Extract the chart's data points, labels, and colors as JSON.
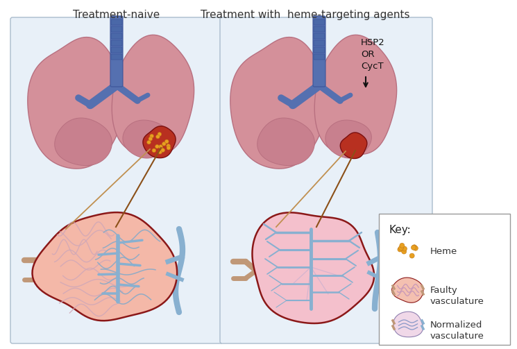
{
  "title_left": "Treatment-naive",
  "title_right": "Treatment with  heme-targeting agents",
  "annotation_text": "HSP2\nOR\nCycT",
  "key_title": "Key:",
  "key_items": [
    "Heme",
    "Faulty\nvasculature",
    "Normalized\nvasculature"
  ],
  "panel_bg": "#e8f0f8",
  "lung_color": "#d4909a",
  "lung_shade": "#c8808e",
  "lung_dark": "#b87080",
  "trachea_color": "#5570b0",
  "trachea_ring": "#3d559a",
  "tumor_fill": "#b83020",
  "heme_color": "#e8a020",
  "heme_edge": "#c07818",
  "vessel_faulty": "#c09878",
  "vessel_blue": "#78a0c0",
  "vessel_pink": "#c8a0b8",
  "artery_color": "#c09878",
  "vein_color": "#88b0d0",
  "tumor_bg_naive": "#f0b0a0",
  "tumor_bg_treated": "#f0c0cc",
  "dark_red_border": "#8b1818",
  "line_color_dark": "#8b5018",
  "line_color_light": "#c09050",
  "arrow_color": "#111111",
  "key_border": "#aaaaaa"
}
